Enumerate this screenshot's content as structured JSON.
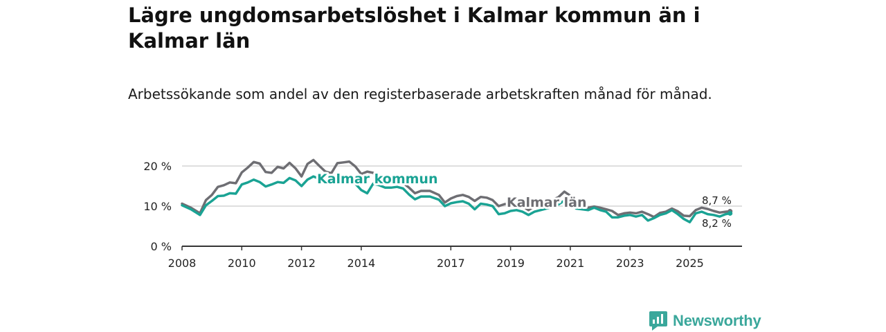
{
  "header": {
    "title": "Lägre ungdomsarbetslöshet i Kalmar kommun än i Kalmar län",
    "subtitle": "Arbetssökande som andel av den registerbaserade arbetskraften månad för månad."
  },
  "brand": {
    "name": "Newsworthy",
    "color": "#3aa79b"
  },
  "colors": {
    "kommun": "#1aa394",
    "lan": "#6e6e73",
    "grid": "#d4d4d4",
    "axis": "#333333"
  },
  "chart_data": {
    "type": "line",
    "title": "Lägre ungdomsarbetslöshet i Kalmar kommun än i Kalmar län",
    "subtitle": "Arbetssökande som andel av den registerbaserade arbetskraften månad för månad.",
    "xlabel": "",
    "ylabel": "",
    "xlim": [
      2008.0,
      2026.75
    ],
    "ylim": [
      0,
      20
    ],
    "x_ticks": [
      {
        "value": 2008,
        "label": "2008"
      },
      {
        "value": 2010,
        "label": "2010"
      },
      {
        "value": 2012,
        "label": "2012"
      },
      {
        "value": 2014,
        "label": "2014"
      },
      {
        "value": 2017,
        "label": "2017"
      },
      {
        "value": 2019,
        "label": "2019"
      },
      {
        "value": 2021,
        "label": "2021"
      },
      {
        "value": 2023,
        "label": "2023"
      },
      {
        "value": 2025,
        "label": "2025"
      }
    ],
    "y_ticks": [
      {
        "value": 0,
        "label": "0 %"
      },
      {
        "value": 10,
        "label": "10 %"
      },
      {
        "value": 20,
        "label": "20 %"
      }
    ],
    "grid": true,
    "series": [
      {
        "name": "Kalmar län",
        "label": "Kalmar län",
        "end_label": "8,7 %",
        "points": [
          [
            2008.0,
            10.6
          ],
          [
            2008.3,
            9.6
          ],
          [
            2008.6,
            8.2
          ],
          [
            2008.8,
            11.5
          ],
          [
            2009.0,
            12.8
          ],
          [
            2009.2,
            14.8
          ],
          [
            2009.4,
            15.2
          ],
          [
            2009.6,
            15.9
          ],
          [
            2009.8,
            15.7
          ],
          [
            2010.0,
            18.4
          ],
          [
            2010.2,
            19.6
          ],
          [
            2010.4,
            21.0
          ],
          [
            2010.6,
            20.6
          ],
          [
            2010.8,
            18.5
          ],
          [
            2011.0,
            18.3
          ],
          [
            2011.2,
            19.8
          ],
          [
            2011.4,
            19.4
          ],
          [
            2011.6,
            20.8
          ],
          [
            2011.8,
            19.4
          ],
          [
            2012.0,
            17.4
          ],
          [
            2012.2,
            20.5
          ],
          [
            2012.4,
            21.5
          ],
          [
            2012.6,
            20.0
          ],
          [
            2012.8,
            18.6
          ],
          [
            2013.0,
            18.2
          ],
          [
            2013.2,
            20.7
          ],
          [
            2013.4,
            20.9
          ],
          [
            2013.6,
            21.1
          ],
          [
            2013.8,
            19.9
          ],
          [
            2014.0,
            18.0
          ],
          [
            2014.2,
            18.6
          ],
          [
            2014.4,
            18.3
          ],
          [
            2014.6,
            17.2
          ],
          [
            2014.8,
            16.9
          ],
          [
            2015.0,
            16.1
          ],
          [
            2015.2,
            16.0
          ],
          [
            2015.4,
            15.8
          ],
          [
            2015.6,
            14.6
          ],
          [
            2015.8,
            13.2
          ],
          [
            2016.0,
            13.8
          ],
          [
            2016.3,
            13.8
          ],
          [
            2016.6,
            12.8
          ],
          [
            2016.8,
            10.9
          ],
          [
            2017.0,
            11.9
          ],
          [
            2017.2,
            12.5
          ],
          [
            2017.4,
            12.8
          ],
          [
            2017.6,
            12.3
          ],
          [
            2017.8,
            11.3
          ],
          [
            2018.0,
            12.3
          ],
          [
            2018.2,
            12.1
          ],
          [
            2018.4,
            11.5
          ],
          [
            2018.6,
            10.0
          ],
          [
            2018.8,
            10.5
          ],
          [
            2019.0,
            10.6
          ],
          [
            2019.2,
            10.2
          ],
          [
            2019.4,
            10.0
          ],
          [
            2019.6,
            9.0
          ],
          [
            2019.8,
            10.0
          ],
          [
            2020.0,
            10.6
          ],
          [
            2020.2,
            11.2
          ],
          [
            2020.4,
            11.6
          ],
          [
            2020.6,
            12.2
          ],
          [
            2020.8,
            13.6
          ],
          [
            2021.0,
            12.6
          ],
          [
            2021.2,
            11.4
          ],
          [
            2021.4,
            9.8
          ],
          [
            2021.6,
            9.6
          ],
          [
            2021.8,
            9.9
          ],
          [
            2022.0,
            9.6
          ],
          [
            2022.2,
            9.2
          ],
          [
            2022.4,
            8.8
          ],
          [
            2022.6,
            7.8
          ],
          [
            2022.8,
            8.2
          ],
          [
            2023.0,
            8.4
          ],
          [
            2023.2,
            8.2
          ],
          [
            2023.4,
            8.6
          ],
          [
            2023.6,
            8.0
          ],
          [
            2023.8,
            7.3
          ],
          [
            2024.0,
            8.3
          ],
          [
            2024.2,
            8.6
          ],
          [
            2024.4,
            9.4
          ],
          [
            2024.6,
            8.7
          ],
          [
            2024.8,
            7.6
          ],
          [
            2025.0,
            7.5
          ],
          [
            2025.2,
            9.0
          ],
          [
            2025.4,
            9.6
          ],
          [
            2025.6,
            9.3
          ],
          [
            2025.8,
            8.8
          ],
          [
            2026.0,
            8.4
          ],
          [
            2026.2,
            8.6
          ],
          [
            2026.35,
            8.7
          ]
        ]
      },
      {
        "name": "Kalmar kommun",
        "label": "Kalmar kommun",
        "end_label": "8,2 %",
        "points": [
          [
            2008.0,
            10.2
          ],
          [
            2008.3,
            9.2
          ],
          [
            2008.6,
            7.8
          ],
          [
            2008.8,
            10.2
          ],
          [
            2009.0,
            11.3
          ],
          [
            2009.2,
            12.5
          ],
          [
            2009.4,
            12.6
          ],
          [
            2009.6,
            13.2
          ],
          [
            2009.8,
            13.1
          ],
          [
            2010.0,
            15.4
          ],
          [
            2010.2,
            15.9
          ],
          [
            2010.4,
            16.6
          ],
          [
            2010.6,
            16.0
          ],
          [
            2010.8,
            14.9
          ],
          [
            2011.0,
            15.4
          ],
          [
            2011.2,
            16.0
          ],
          [
            2011.4,
            15.8
          ],
          [
            2011.6,
            17.0
          ],
          [
            2011.8,
            16.4
          ],
          [
            2012.0,
            15.0
          ],
          [
            2012.2,
            16.6
          ],
          [
            2012.4,
            17.4
          ],
          [
            2012.6,
            16.8
          ],
          [
            2012.8,
            15.6
          ],
          [
            2013.0,
            15.8
          ],
          [
            2013.2,
            16.8
          ],
          [
            2013.4,
            17.0
          ],
          [
            2013.6,
            16.7
          ],
          [
            2013.8,
            15.6
          ],
          [
            2014.0,
            14.0
          ],
          [
            2014.2,
            13.2
          ],
          [
            2014.4,
            15.6
          ],
          [
            2014.6,
            15.2
          ],
          [
            2014.8,
            14.6
          ],
          [
            2015.0,
            14.6
          ],
          [
            2015.2,
            14.8
          ],
          [
            2015.4,
            14.4
          ],
          [
            2015.6,
            12.9
          ],
          [
            2015.8,
            11.7
          ],
          [
            2016.0,
            12.4
          ],
          [
            2016.3,
            12.4
          ],
          [
            2016.6,
            11.6
          ],
          [
            2016.8,
            10.0
          ],
          [
            2017.0,
            10.7
          ],
          [
            2017.2,
            11.0
          ],
          [
            2017.4,
            11.2
          ],
          [
            2017.6,
            10.6
          ],
          [
            2017.8,
            9.2
          ],
          [
            2018.0,
            10.6
          ],
          [
            2018.2,
            10.4
          ],
          [
            2018.4,
            10.0
          ],
          [
            2018.6,
            8.0
          ],
          [
            2018.8,
            8.2
          ],
          [
            2019.0,
            8.8
          ],
          [
            2019.2,
            9.0
          ],
          [
            2019.4,
            8.6
          ],
          [
            2019.6,
            7.8
          ],
          [
            2019.8,
            8.6
          ],
          [
            2020.0,
            9.0
          ],
          [
            2020.2,
            9.4
          ],
          [
            2020.4,
            9.8
          ],
          [
            2020.6,
            10.4
          ],
          [
            2020.8,
            11.4
          ],
          [
            2021.0,
            10.6
          ],
          [
            2021.2,
            9.4
          ],
          [
            2021.4,
            9.2
          ],
          [
            2021.6,
            9.0
          ],
          [
            2021.8,
            9.6
          ],
          [
            2022.0,
            9.0
          ],
          [
            2022.2,
            8.6
          ],
          [
            2022.4,
            7.2
          ],
          [
            2022.6,
            7.2
          ],
          [
            2022.8,
            7.6
          ],
          [
            2023.0,
            7.8
          ],
          [
            2023.2,
            7.4
          ],
          [
            2023.4,
            7.8
          ],
          [
            2023.6,
            6.4
          ],
          [
            2023.8,
            7.0
          ],
          [
            2024.0,
            7.8
          ],
          [
            2024.2,
            8.2
          ],
          [
            2024.4,
            9.0
          ],
          [
            2024.6,
            8.0
          ],
          [
            2024.8,
            6.8
          ],
          [
            2025.0,
            6.0
          ],
          [
            2025.2,
            8.2
          ],
          [
            2025.4,
            8.6
          ],
          [
            2025.6,
            8.0
          ],
          [
            2025.8,
            7.8
          ],
          [
            2026.0,
            7.4
          ],
          [
            2026.2,
            8.0
          ],
          [
            2026.35,
            8.2
          ]
        ]
      }
    ]
  }
}
